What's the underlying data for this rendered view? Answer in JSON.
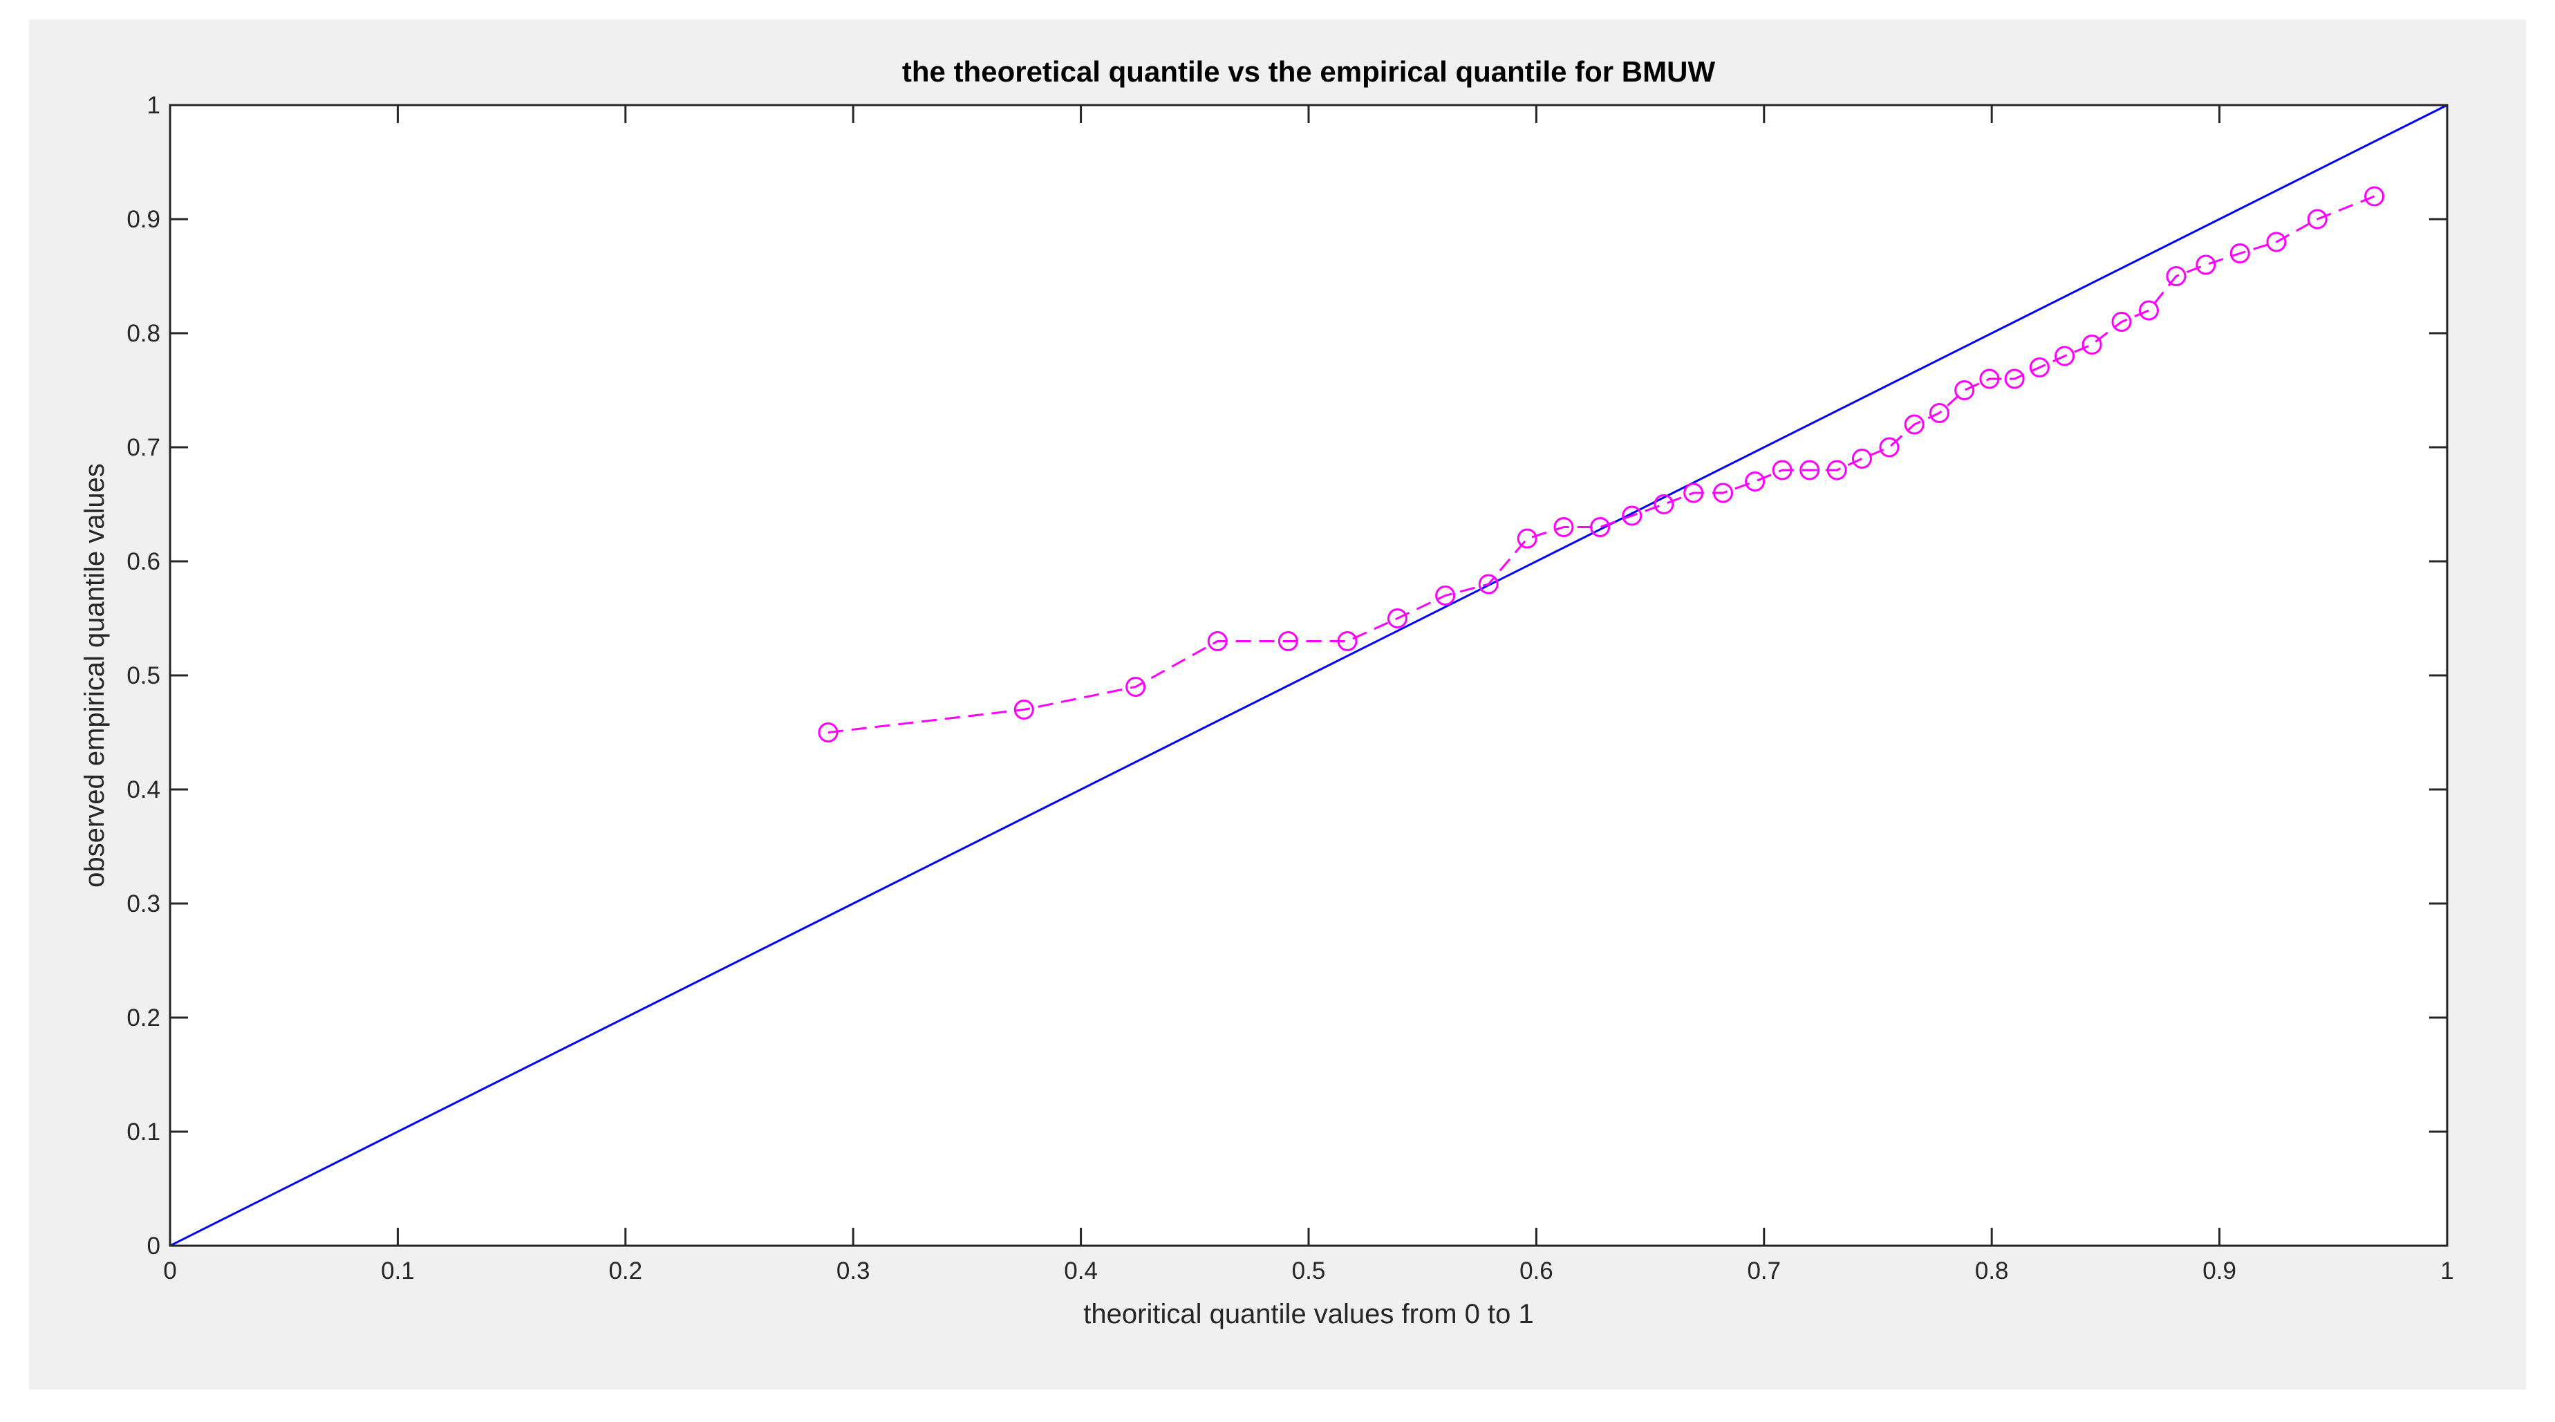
{
  "chart_data": {
    "type": "line",
    "title": "the theoretical quantile vs the empirical quantile for BMUW",
    "xlabel": "theoritical quantile values from 0 to 1",
    "ylabel": "observed empirical quantile  values",
    "xlim": [
      0,
      1
    ],
    "ylim": [
      0,
      1
    ],
    "xticks": [
      0,
      0.1,
      0.2,
      0.3,
      0.4,
      0.5,
      0.6,
      0.7,
      0.8,
      0.9,
      1
    ],
    "yticks": [
      0,
      0.1,
      0.2,
      0.3,
      0.4,
      0.5,
      0.6,
      0.7,
      0.8,
      0.9,
      1
    ],
    "xtick_labels": [
      "0",
      "0.1",
      "0.2",
      "0.3",
      "0.4",
      "0.5",
      "0.6",
      "0.7",
      "0.8",
      "0.9",
      "1"
    ],
    "ytick_labels": [
      "0",
      "0.1",
      "0.2",
      "0.3",
      "0.4",
      "0.5",
      "0.6",
      "0.7",
      "0.8",
      "0.9",
      "1"
    ],
    "grid": false,
    "legend": "none",
    "colors": {
      "figure_background": "#f0f0f0",
      "axes_background": "#ffffff",
      "axis": "#262626",
      "reference_line": "#0000ff",
      "quantile_series": "#ff00ff"
    },
    "series": [
      {
        "style": "solid line",
        "color": "#0000ff",
        "x": [
          0,
          1
        ],
        "y": [
          0,
          1
        ]
      },
      {
        "style": "dashed line with circle markers",
        "color": "#ff00ff",
        "x": [
          0.289,
          0.375,
          0.424,
          0.46,
          0.491,
          0.517,
          0.539,
          0.56,
          0.579,
          0.596,
          0.612,
          0.628,
          0.642,
          0.656,
          0.669,
          0.682,
          0.696,
          0.708,
          0.72,
          0.732,
          0.743,
          0.755,
          0.766,
          0.777,
          0.788,
          0.799,
          0.81,
          0.821,
          0.832,
          0.844,
          0.857,
          0.869,
          0.881,
          0.894,
          0.909,
          0.925,
          0.943,
          0.968
        ],
        "y": [
          0.45,
          0.47,
          0.49,
          0.53,
          0.53,
          0.53,
          0.55,
          0.57,
          0.58,
          0.62,
          0.63,
          0.63,
          0.64,
          0.65,
          0.66,
          0.66,
          0.67,
          0.68,
          0.68,
          0.68,
          0.69,
          0.7,
          0.72,
          0.73,
          0.75,
          0.76,
          0.76,
          0.77,
          0.78,
          0.79,
          0.81,
          0.82,
          0.85,
          0.86,
          0.87,
          0.88,
          0.9,
          0.92
        ]
      }
    ]
  }
}
